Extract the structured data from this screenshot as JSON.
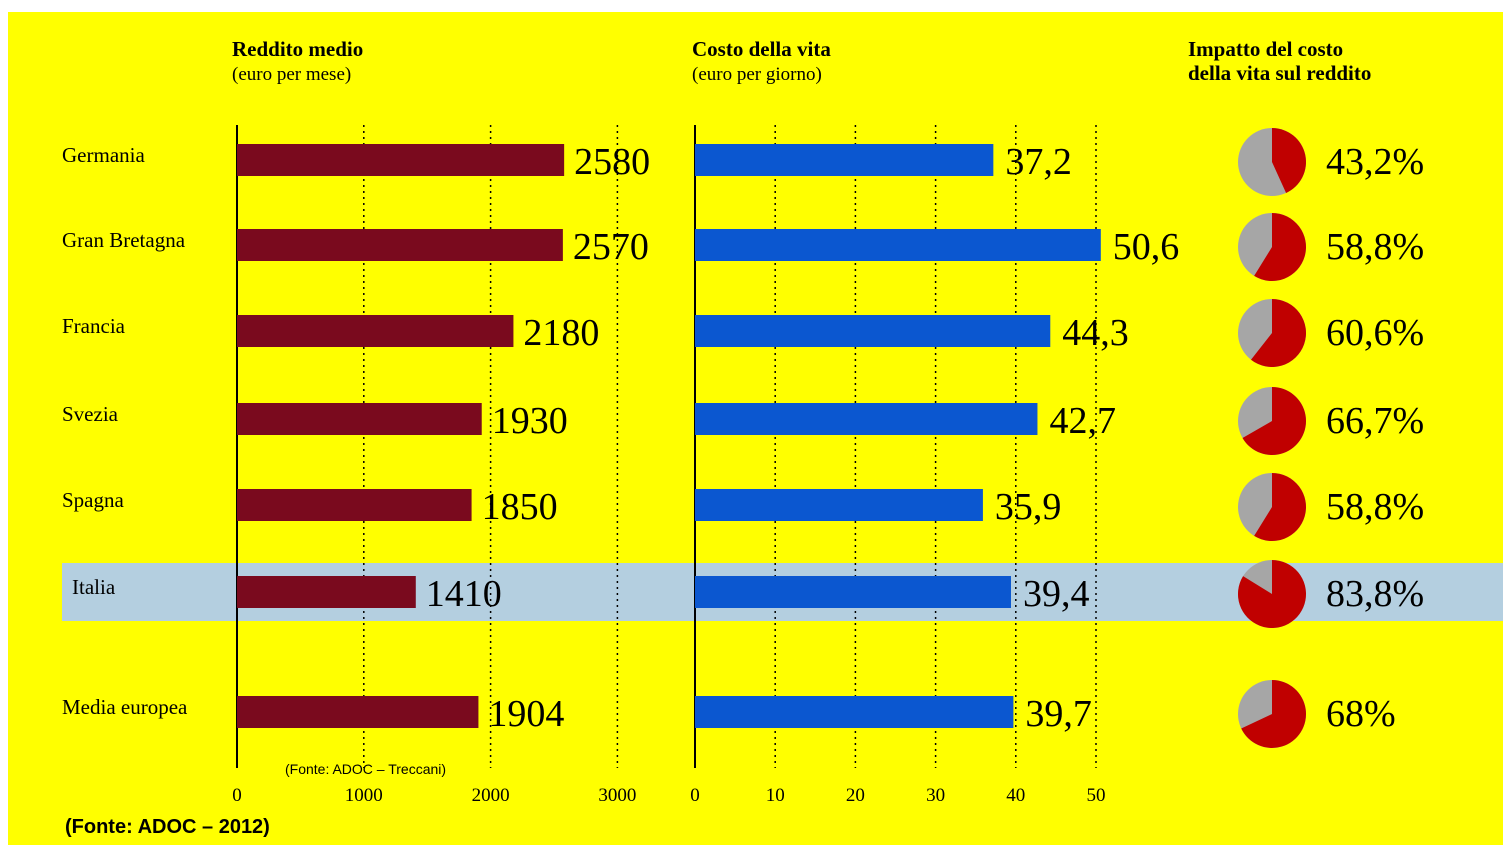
{
  "cut_header_text": "",
  "chart_data": [
    {
      "type": "bar",
      "orientation": "horizontal",
      "title": "Reddito medio",
      "subtitle": "(euro per mese)",
      "categories": [
        "Germania",
        "Gran Bretagna",
        "Francia",
        "Svezia",
        "Spagna",
        "Italia",
        "Media europea"
      ],
      "values": [
        2580,
        2570,
        2180,
        1930,
        1850,
        1410,
        1904
      ],
      "value_labels": [
        "2580",
        "2570",
        "2180",
        "1930",
        "1850",
        "1410",
        "1904"
      ],
      "xlim": [
        0,
        3000
      ],
      "ticks": [
        "0",
        "1000",
        "2000",
        "3000"
      ],
      "color": "#7a0a1e",
      "grid": "dotted vertical"
    },
    {
      "type": "bar",
      "orientation": "horizontal",
      "title": "Costo della vita",
      "subtitle": "(euro per giorno)",
      "categories": [
        "Germania",
        "Gran Bretagna",
        "Francia",
        "Svezia",
        "Spagna",
        "Italia",
        "Media europea"
      ],
      "values": [
        37.2,
        50.6,
        44.3,
        42.7,
        35.9,
        39.4,
        39.7
      ],
      "value_labels": [
        "37,2",
        "50,6",
        "44,3",
        "42,7",
        "35,9",
        "39,4",
        "39,7"
      ],
      "xlim": [
        0,
        50
      ],
      "ticks": [
        "0",
        "10",
        "20",
        "30",
        "40",
        "50"
      ],
      "color": "#0b57d0",
      "grid": "dotted vertical"
    },
    {
      "type": "pie",
      "title": "Impatto del costo della vita sul reddito",
      "categories": [
        "Germania",
        "Gran Bretagna",
        "Francia",
        "Svezia",
        "Spagna",
        "Italia",
        "Media europea"
      ],
      "values": [
        43.2,
        58.8,
        60.6,
        66.7,
        58.8,
        83.8,
        68
      ],
      "value_labels": [
        "43,2%",
        "58,8%",
        "60,6%",
        "66,7%",
        "58,8%",
        "83,8%",
        "68%"
      ],
      "slice_color": "#c00000",
      "rest_color": "#a6a6a6"
    }
  ],
  "highlight": {
    "category": "Italia",
    "color": "#b4cfe0"
  },
  "sources": {
    "inner": "(Fonte: ADOC – Treccani)",
    "footer": "(Fonte: ADOC – 2012)"
  },
  "colors": {
    "background": "#ffff00"
  }
}
